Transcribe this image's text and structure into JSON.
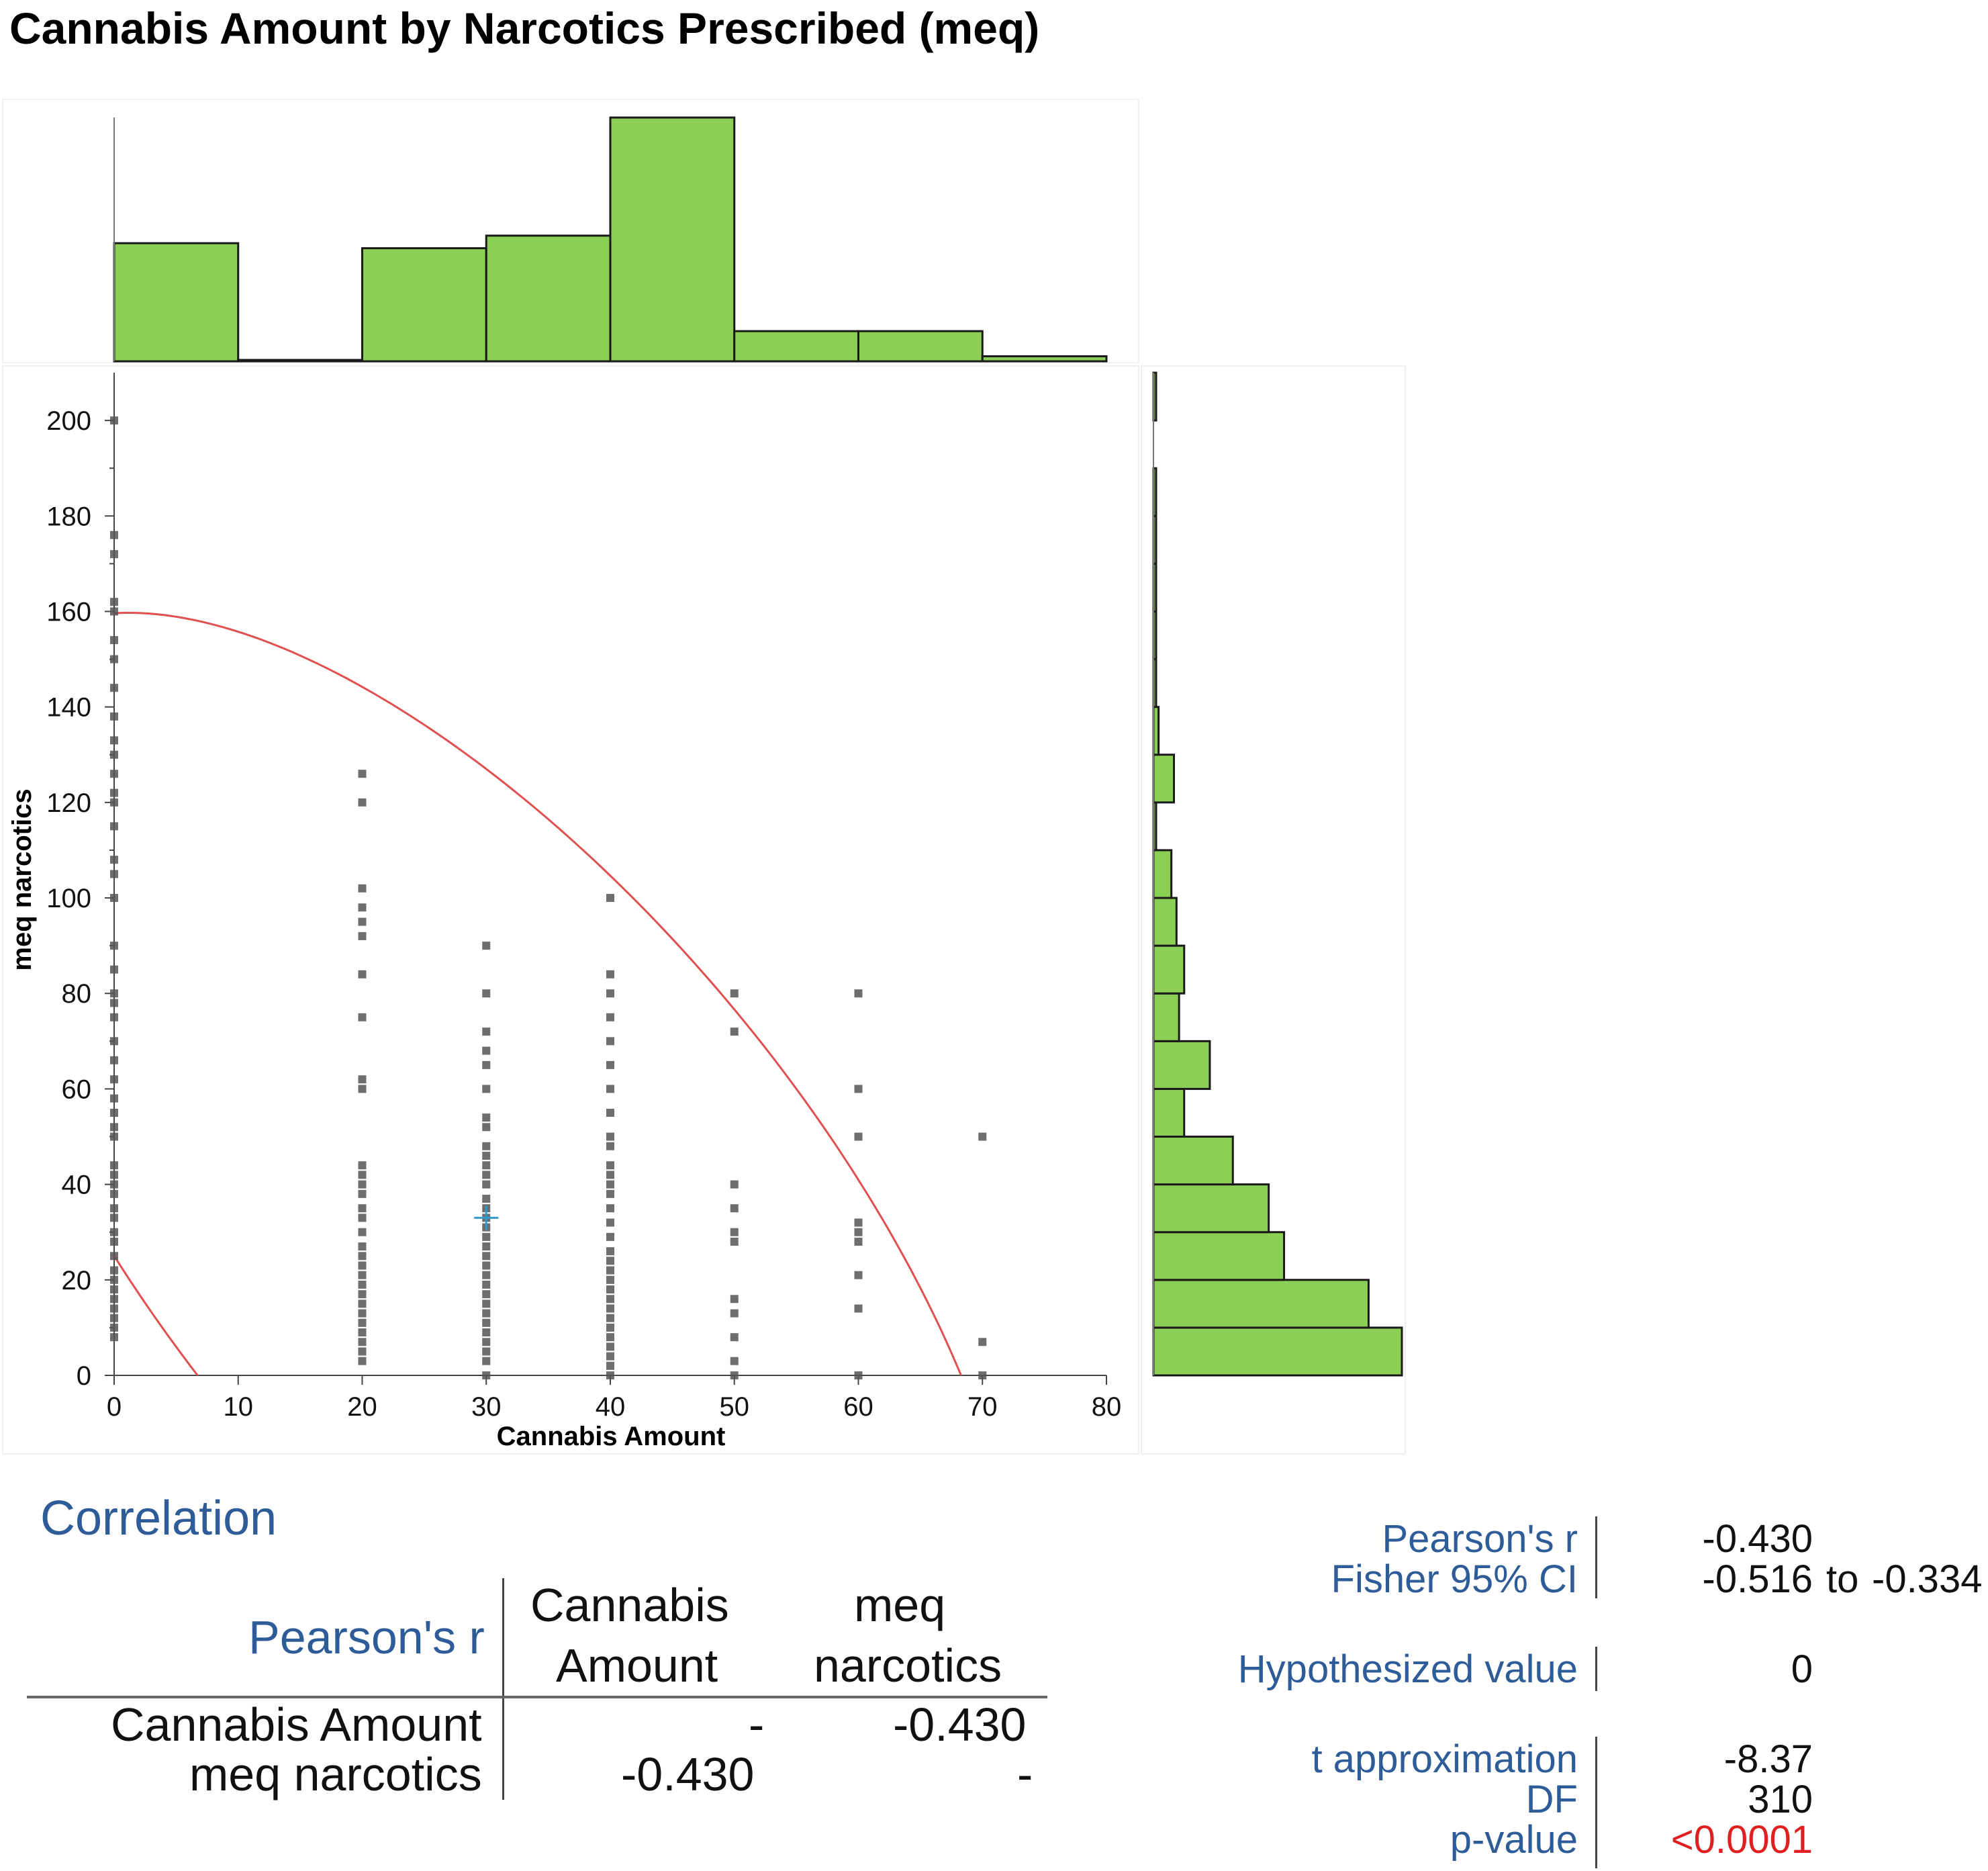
{
  "title": "Cannabis Amount by Narcotics Prescribed (meq)",
  "colors": {
    "bar_fill": "#8ccf57",
    "bar_stroke": "#1a1a1a",
    "ellipse": "#e05050",
    "point": "#555555",
    "mean_marker": "#3399cc",
    "label_blue": "#2e5c99",
    "pvalue": "#e02020"
  },
  "chart_data": [
    {
      "type": "scatter",
      "xlabel": "Cannabis Amount",
      "ylabel": "meq narcotics",
      "xlim": [
        0,
        80
      ],
      "ylim": [
        0,
        210
      ],
      "xticks": [
        "0",
        "10",
        "20",
        "30",
        "40",
        "50",
        "60",
        "70",
        "80"
      ],
      "yticks": [
        "0",
        "20",
        "40",
        "60",
        "80",
        "100",
        "120",
        "140",
        "160",
        "180",
        "200"
      ],
      "points": [
        {
          "x": 0,
          "ys": [
            8,
            10,
            12,
            14,
            16,
            18,
            20,
            22,
            25,
            28,
            30,
            33,
            35,
            38,
            40,
            42,
            44,
            50,
            52,
            55,
            58,
            62,
            66,
            70,
            75,
            78,
            80,
            85,
            90,
            100,
            105,
            108,
            115,
            120,
            122,
            126,
            130,
            133,
            138,
            144,
            150,
            154,
            160,
            162,
            172,
            176,
            200
          ]
        },
        {
          "x": 20,
          "ys": [
            3,
            5,
            7,
            9,
            11,
            13,
            15,
            17,
            19,
            21,
            23,
            25,
            27,
            30,
            33,
            35,
            38,
            40,
            42,
            44,
            60,
            62,
            75,
            84,
            92,
            95,
            98,
            102,
            120,
            126
          ]
        },
        {
          "x": 30,
          "ys": [
            0,
            3,
            5,
            7,
            9,
            11,
            13,
            15,
            17,
            19,
            21,
            23,
            25,
            27,
            29,
            31,
            33,
            35,
            37,
            40,
            42,
            44,
            46,
            48,
            52,
            54,
            60,
            65,
            68,
            72,
            80,
            90
          ]
        },
        {
          "x": 40,
          "ys": [
            0,
            2,
            4,
            6,
            8,
            10,
            12,
            14,
            16,
            18,
            20,
            22,
            24,
            26,
            29,
            32,
            35,
            38,
            40,
            42,
            44,
            48,
            50,
            55,
            60,
            65,
            70,
            75,
            80,
            84,
            100
          ]
        },
        {
          "x": 50,
          "ys": [
            0,
            3,
            8,
            13,
            16,
            28,
            30,
            35,
            40,
            72,
            80
          ]
        },
        {
          "x": 60,
          "ys": [
            0,
            14,
            21,
            28,
            30,
            32,
            50,
            60,
            80
          ]
        },
        {
          "x": 70,
          "ys": [
            0,
            7,
            50
          ]
        }
      ],
      "mean_point": {
        "x": 30,
        "y": 33
      },
      "density_ellipse": "bivariate normal density ellipse"
    },
    {
      "type": "bar",
      "orientation": "vertical",
      "role": "histogram of Cannabis Amount (top margin)",
      "bin_edges": [
        0,
        10,
        20,
        30,
        40,
        50,
        60,
        70,
        80
      ],
      "values": [
        47,
        0,
        45,
        50,
        97,
        12,
        12,
        2
      ]
    },
    {
      "type": "bar",
      "orientation": "horizontal",
      "role": "histogram of meq narcotics (right margin)",
      "bin_edges": [
        0,
        10,
        20,
        30,
        40,
        50,
        60,
        70,
        80,
        90,
        100,
        110,
        120,
        130,
        140,
        150,
        160,
        170,
        180,
        190,
        200,
        210
      ],
      "values": [
        97,
        84,
        51,
        45,
        31,
        12,
        22,
        10,
        12,
        9,
        7,
        1,
        8,
        2,
        1,
        1,
        1,
        1,
        1,
        0,
        1
      ]
    }
  ],
  "correlation": {
    "title": "Correlation",
    "row_header": "Pearson's r",
    "col1_l1": "Cannabis",
    "col1_l2": "Amount",
    "col2_l1": "meq",
    "col2_l2": "narcotics",
    "row1_label": "Cannabis Amount",
    "row1_c1": "-",
    "row1_c2": "-0.430",
    "row2_label": "meq narcotics",
    "row2_c1": "-0.430",
    "row2_c2": "-"
  },
  "stats": {
    "pearson_label": "Pearson's r",
    "pearson_value": "-0.430",
    "fisher_label": "Fisher 95% CI",
    "fisher_low": "-0.516",
    "fisher_to": "to",
    "fisher_high": "-0.334",
    "hyp_label": "Hypothesized value",
    "hyp_value": "0",
    "t_label": "t approximation",
    "t_value": "-8.37",
    "df_label": "DF",
    "df_value": "310",
    "p_label": "p-value",
    "p_value": "<0.0001"
  }
}
